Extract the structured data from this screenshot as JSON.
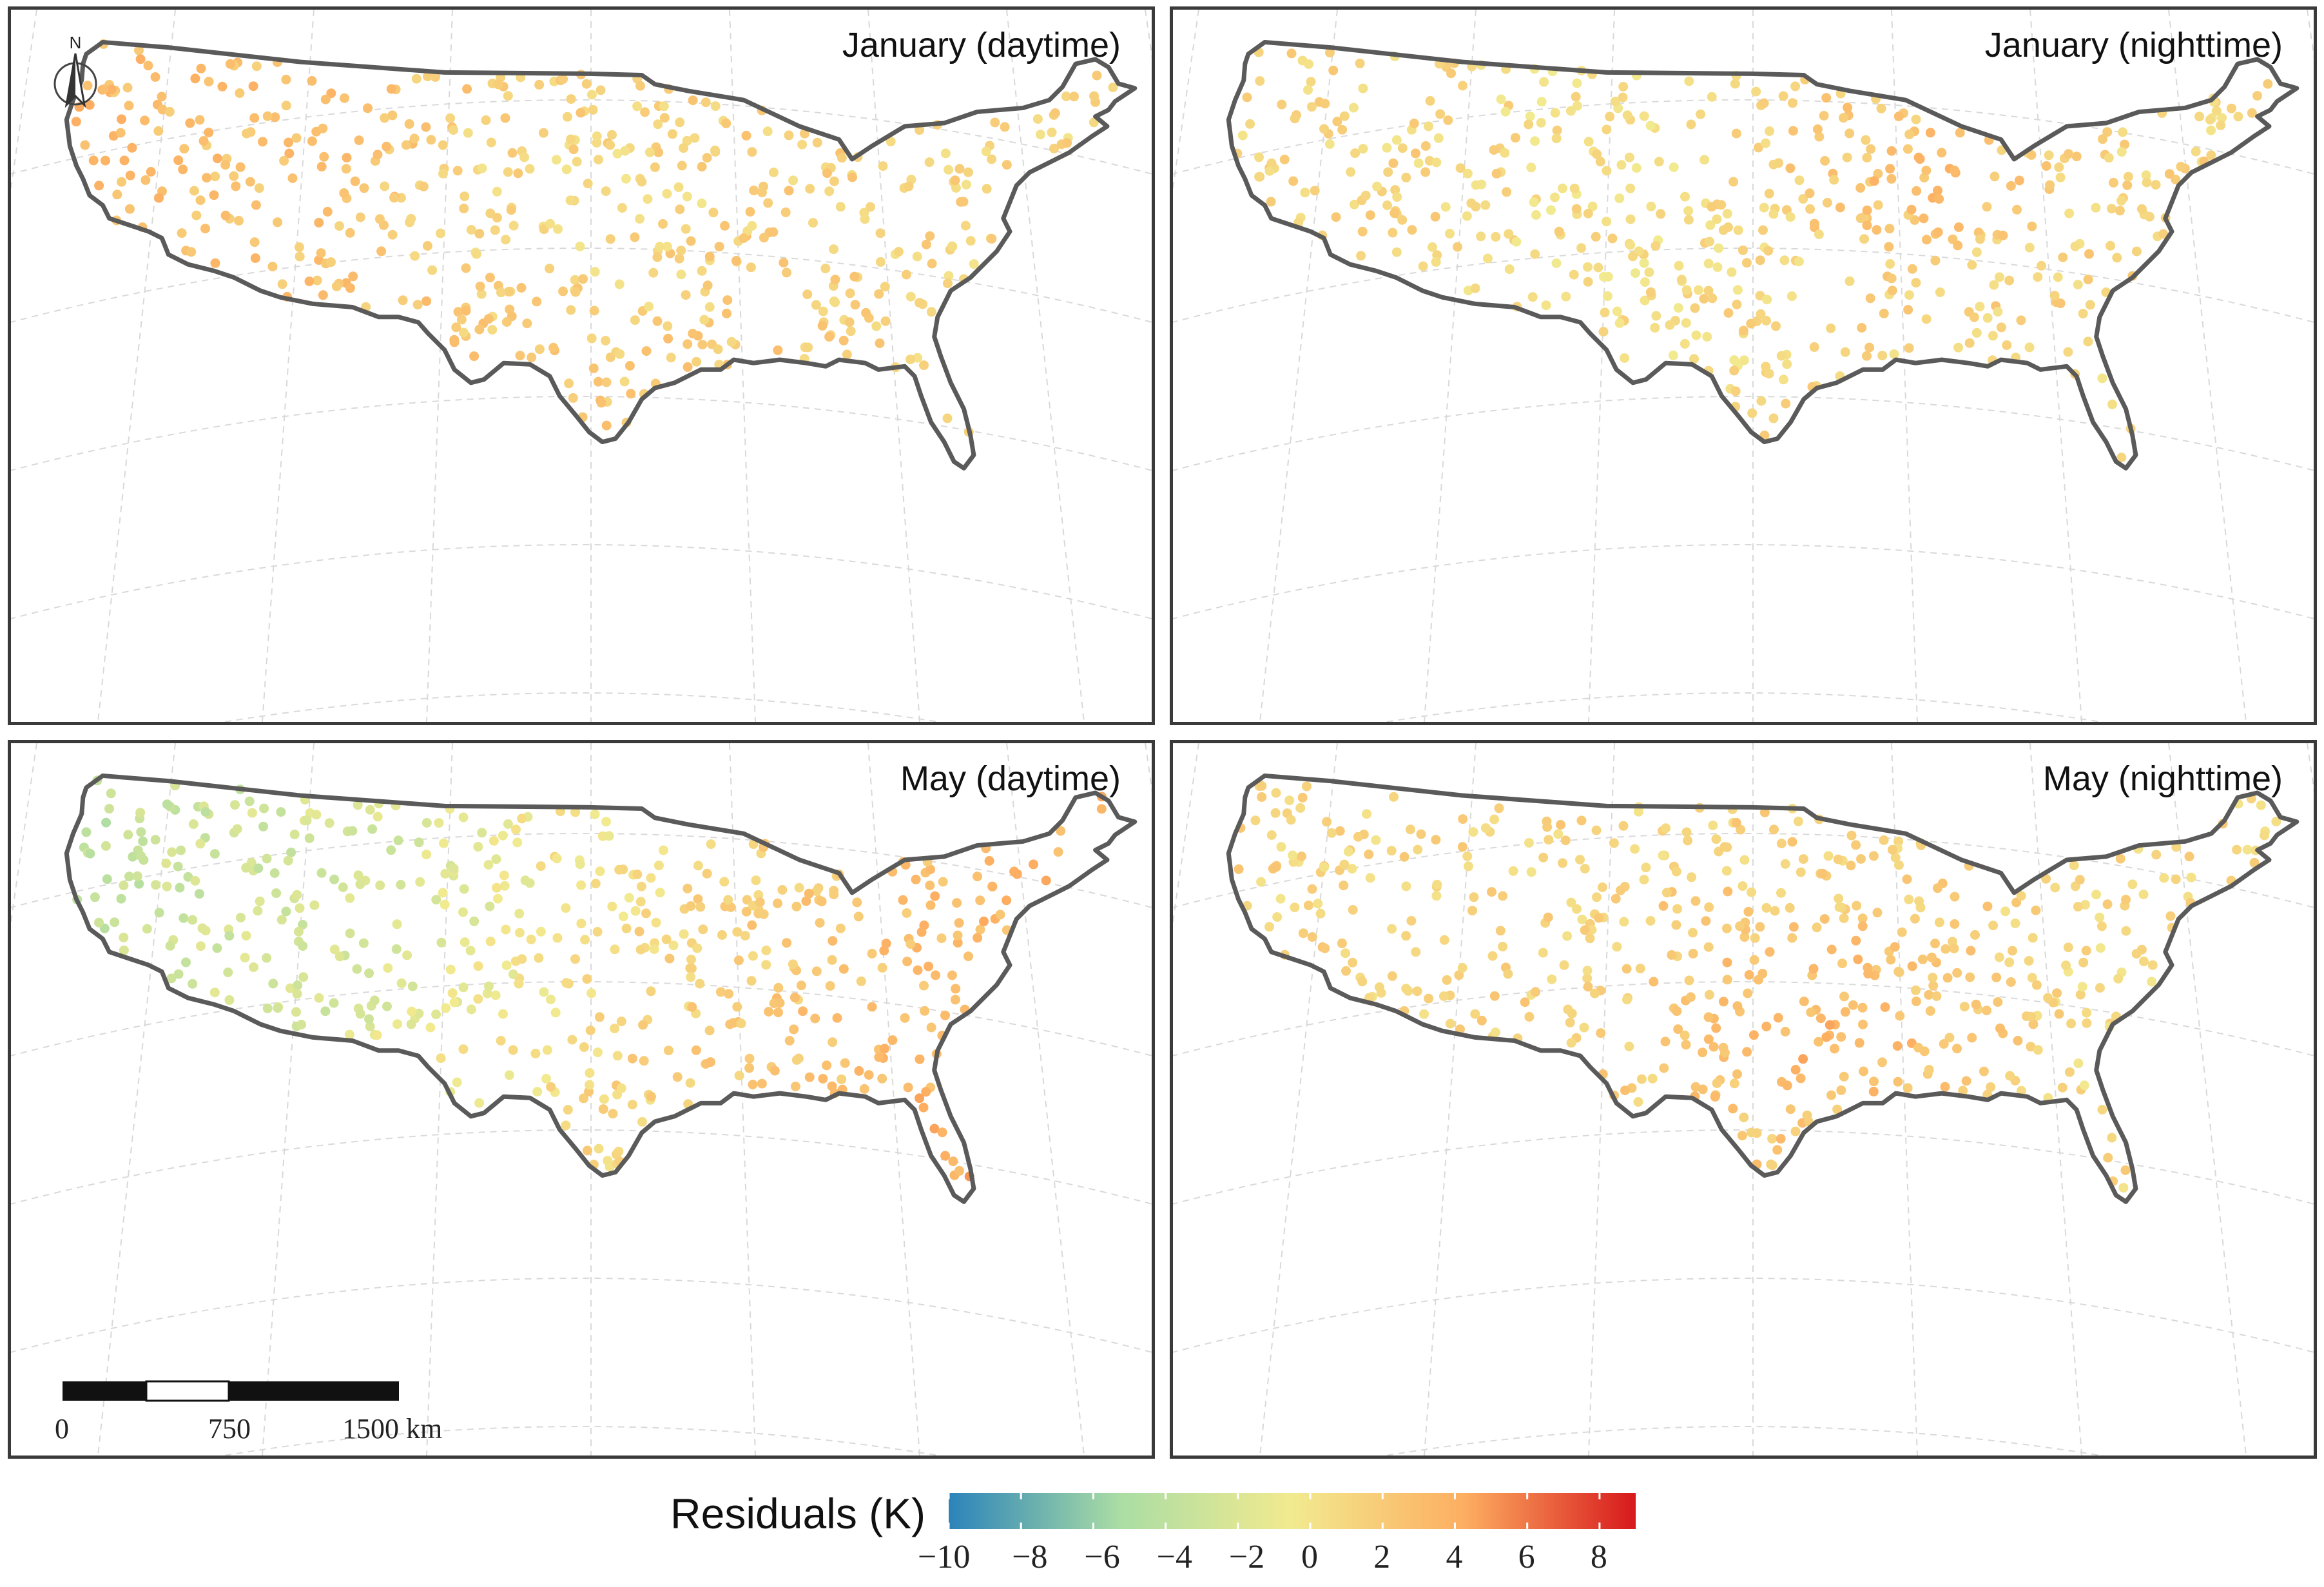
{
  "panels": [
    {
      "title": "January (daytime)"
    },
    {
      "title": "January (nighttime)"
    },
    {
      "title": "May (daytime)"
    },
    {
      "title": "May (nighttime)"
    }
  ],
  "north_arrow": {
    "label": "N",
    "icon": "north-arrow-icon"
  },
  "scale_bar": {
    "labels": [
      "0",
      "750",
      "1500 km"
    ]
  },
  "legend": {
    "title": "Residuals (K)",
    "ticks": [
      "−10",
      "−8",
      "−6",
      "−4",
      "−2",
      "0",
      "2",
      "4",
      "6",
      "8"
    ],
    "range": [
      -10,
      9
    ],
    "colors": [
      "#2b83ba",
      "#abdda4",
      "#f2ea8f",
      "#fdae61",
      "#d7191c"
    ]
  },
  "colors": {
    "outline": "#5a5a5a",
    "frame": "#3a3a3a",
    "graticule": "#d9d9d9"
  }
}
